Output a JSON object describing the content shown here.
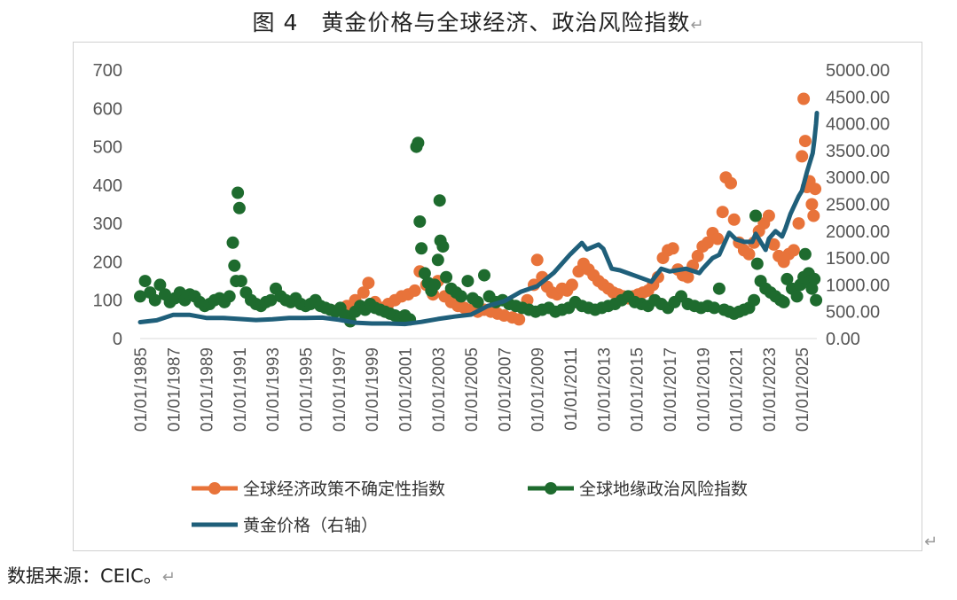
{
  "figure": {
    "title": "图 4　黄金价格与全球经济、政治风险指数",
    "title_mark": "↵",
    "source": "数据来源：CEIC。",
    "source_mark": "↵",
    "end_mark": "↵"
  },
  "colors": {
    "epu": "#E8733A",
    "gpr": "#1E6B2E",
    "gold": "#1F5F7A",
    "axis_text": "#555555",
    "frame": "#d0d0d0"
  },
  "chart_data": {
    "type": "scatter",
    "y_left": {
      "min": 0,
      "max": 700,
      "ticks": [
        "0",
        "100",
        "200",
        "300",
        "400",
        "500",
        "600",
        "700"
      ]
    },
    "y_right": {
      "min": 0,
      "max": 5000,
      "ticks": [
        "0.00",
        "500.00",
        "1000.00",
        "1500.00",
        "2000.00",
        "2500.00",
        "3000.00",
        "3500.00",
        "4000.00",
        "4500.00",
        "5000.00"
      ]
    },
    "x_range": [
      1985,
      2025.9
    ],
    "x_ticks": [
      "01/01/1985",
      "01/01/1987",
      "01/01/1989",
      "01/01/1991",
      "01/01/1993",
      "01/01/1995",
      "01/01/1997",
      "01/01/1999",
      "01/01/2001",
      "01/01/2003",
      "01/01/2005",
      "01/01/2007",
      "01/01/2009",
      "01/01/2011",
      "01/01/2013",
      "01/01/2015",
      "01/01/2017",
      "01/01/2019",
      "01/01/2021",
      "01/01/2023",
      "01/01/2025"
    ],
    "legend": [
      "全球经济政策不确定性指数",
      "全球地缘政治风险指数",
      "黄金价格（右轴）"
    ],
    "series": [
      {
        "name": "全球经济政策不确定性指数",
        "kind": "scatter",
        "axis": "left",
        "points": [
          [
            1997.0,
            75
          ],
          [
            1997.5,
            85
          ],
          [
            1998.0,
            100
          ],
          [
            1998.5,
            120
          ],
          [
            1998.8,
            145
          ],
          [
            1999.2,
            95
          ],
          [
            1999.6,
            80
          ],
          [
            2000.0,
            90
          ],
          [
            2000.4,
            100
          ],
          [
            2000.8,
            110
          ],
          [
            2001.2,
            115
          ],
          [
            2001.6,
            125
          ],
          [
            2001.9,
            175
          ],
          [
            2002.3,
            140
          ],
          [
            2002.7,
            115
          ],
          [
            2003.0,
            150
          ],
          [
            2003.4,
            110
          ],
          [
            2003.8,
            95
          ],
          [
            2004.2,
            85
          ],
          [
            2004.6,
            80
          ],
          [
            2005.0,
            75
          ],
          [
            2005.4,
            70
          ],
          [
            2005.8,
            75
          ],
          [
            2006.2,
            70
          ],
          [
            2006.6,
            65
          ],
          [
            2007.0,
            60
          ],
          [
            2007.5,
            55
          ],
          [
            2007.9,
            50
          ],
          [
            2008.4,
            100
          ],
          [
            2008.8,
            140
          ],
          [
            2009.0,
            205
          ],
          [
            2009.3,
            160
          ],
          [
            2009.6,
            135
          ],
          [
            2009.9,
            120
          ],
          [
            2010.2,
            115
          ],
          [
            2010.5,
            130
          ],
          [
            2010.8,
            125
          ],
          [
            2011.1,
            140
          ],
          [
            2011.5,
            175
          ],
          [
            2011.8,
            195
          ],
          [
            2012.1,
            180
          ],
          [
            2012.4,
            165
          ],
          [
            2012.7,
            150
          ],
          [
            2013.0,
            140
          ],
          [
            2013.3,
            130
          ],
          [
            2013.6,
            120
          ],
          [
            2013.9,
            115
          ],
          [
            2014.2,
            110
          ],
          [
            2014.5,
            105
          ],
          [
            2014.8,
            110
          ],
          [
            2015.1,
            115
          ],
          [
            2015.4,
            120
          ],
          [
            2015.7,
            125
          ],
          [
            2016.0,
            140
          ],
          [
            2016.3,
            160
          ],
          [
            2016.6,
            210
          ],
          [
            2016.9,
            230
          ],
          [
            2017.2,
            235
          ],
          [
            2017.5,
            180
          ],
          [
            2017.8,
            165
          ],
          [
            2018.1,
            160
          ],
          [
            2018.4,
            190
          ],
          [
            2018.7,
            215
          ],
          [
            2019.0,
            240
          ],
          [
            2019.3,
            250
          ],
          [
            2019.6,
            275
          ],
          [
            2019.9,
            260
          ],
          [
            2020.2,
            330
          ],
          [
            2020.4,
            420
          ],
          [
            2020.7,
            405
          ],
          [
            2020.9,
            310
          ],
          [
            2021.2,
            250
          ],
          [
            2021.5,
            230
          ],
          [
            2021.8,
            220
          ],
          [
            2022.1,
            250
          ],
          [
            2022.4,
            280
          ],
          [
            2022.7,
            300
          ],
          [
            2023.0,
            320
          ],
          [
            2023.3,
            245
          ],
          [
            2023.6,
            215
          ],
          [
            2023.9,
            200
          ],
          [
            2024.2,
            220
          ],
          [
            2024.5,
            230
          ],
          [
            2024.8,
            300
          ],
          [
            2025.0,
            475
          ],
          [
            2025.1,
            625
          ],
          [
            2025.2,
            515
          ],
          [
            2025.3,
            395
          ],
          [
            2025.45,
            410
          ],
          [
            2025.6,
            350
          ],
          [
            2025.7,
            320
          ],
          [
            2025.8,
            390
          ]
        ]
      },
      {
        "name": "全球地缘政治风险指数",
        "kind": "scatter",
        "axis": "left",
        "points": [
          [
            1985.0,
            110
          ],
          [
            1985.3,
            150
          ],
          [
            1985.6,
            120
          ],
          [
            1985.9,
            100
          ],
          [
            1986.2,
            140
          ],
          [
            1986.5,
            115
          ],
          [
            1986.8,
            95
          ],
          [
            1987.1,
            105
          ],
          [
            1987.4,
            120
          ],
          [
            1987.7,
            100
          ],
          [
            1988.0,
            115
          ],
          [
            1988.3,
            110
          ],
          [
            1988.6,
            95
          ],
          [
            1988.9,
            85
          ],
          [
            1989.2,
            90
          ],
          [
            1989.5,
            100
          ],
          [
            1989.8,
            105
          ],
          [
            1990.1,
            95
          ],
          [
            1990.4,
            110
          ],
          [
            1990.6,
            250
          ],
          [
            1990.7,
            190
          ],
          [
            1990.8,
            150
          ],
          [
            1990.9,
            380
          ],
          [
            1991.0,
            340
          ],
          [
            1991.1,
            150
          ],
          [
            1991.4,
            120
          ],
          [
            1991.7,
            100
          ],
          [
            1992.0,
            90
          ],
          [
            1992.3,
            85
          ],
          [
            1992.6,
            95
          ],
          [
            1992.9,
            100
          ],
          [
            1993.2,
            130
          ],
          [
            1993.5,
            110
          ],
          [
            1993.8,
            100
          ],
          [
            1994.1,
            95
          ],
          [
            1994.4,
            105
          ],
          [
            1994.7,
            90
          ],
          [
            1995.0,
            85
          ],
          [
            1995.3,
            90
          ],
          [
            1995.6,
            100
          ],
          [
            1995.9,
            85
          ],
          [
            1996.2,
            80
          ],
          [
            1996.5,
            75
          ],
          [
            1996.8,
            70
          ],
          [
            1997.1,
            80
          ],
          [
            1997.4,
            60
          ],
          [
            1997.7,
            45
          ],
          [
            1998.0,
            70
          ],
          [
            1998.3,
            85
          ],
          [
            1998.6,
            75
          ],
          [
            1998.9,
            90
          ],
          [
            1999.2,
            80
          ],
          [
            1999.5,
            75
          ],
          [
            1999.8,
            70
          ],
          [
            2000.1,
            65
          ],
          [
            2000.4,
            60
          ],
          [
            2000.7,
            55
          ],
          [
            2001.0,
            60
          ],
          [
            2001.3,
            50
          ],
          [
            2001.7,
            500
          ],
          [
            2001.8,
            510
          ],
          [
            2001.9,
            305
          ],
          [
            2002.0,
            235
          ],
          [
            2002.2,
            170
          ],
          [
            2002.4,
            145
          ],
          [
            2002.6,
            125
          ],
          [
            2002.8,
            140
          ],
          [
            2003.0,
            205
          ],
          [
            2003.1,
            360
          ],
          [
            2003.15,
            255
          ],
          [
            2003.3,
            240
          ],
          [
            2003.5,
            160
          ],
          [
            2003.8,
            130
          ],
          [
            2004.1,
            120
          ],
          [
            2004.4,
            110
          ],
          [
            2004.8,
            150
          ],
          [
            2005.1,
            105
          ],
          [
            2005.4,
            95
          ],
          [
            2005.8,
            165
          ],
          [
            2006.1,
            110
          ],
          [
            2006.5,
            95
          ],
          [
            2006.9,
            100
          ],
          [
            2007.3,
            90
          ],
          [
            2007.7,
            85
          ],
          [
            2008.1,
            80
          ],
          [
            2008.5,
            75
          ],
          [
            2008.9,
            70
          ],
          [
            2009.3,
            75
          ],
          [
            2009.7,
            80
          ],
          [
            2010.1,
            70
          ],
          [
            2010.5,
            75
          ],
          [
            2010.9,
            80
          ],
          [
            2011.3,
            95
          ],
          [
            2011.7,
            85
          ],
          [
            2012.1,
            80
          ],
          [
            2012.5,
            75
          ],
          [
            2012.9,
            80
          ],
          [
            2013.3,
            85
          ],
          [
            2013.7,
            90
          ],
          [
            2014.1,
            100
          ],
          [
            2014.5,
            110
          ],
          [
            2014.9,
            95
          ],
          [
            2015.3,
            90
          ],
          [
            2015.7,
            85
          ],
          [
            2016.1,
            100
          ],
          [
            2016.5,
            90
          ],
          [
            2016.9,
            80
          ],
          [
            2017.3,
            95
          ],
          [
            2017.7,
            110
          ],
          [
            2018.1,
            90
          ],
          [
            2018.5,
            85
          ],
          [
            2018.9,
            80
          ],
          [
            2019.3,
            85
          ],
          [
            2019.7,
            80
          ],
          [
            2020.0,
            130
          ],
          [
            2020.3,
            75
          ],
          [
            2020.6,
            70
          ],
          [
            2020.9,
            65
          ],
          [
            2021.2,
            70
          ],
          [
            2021.5,
            75
          ],
          [
            2021.8,
            80
          ],
          [
            2022.1,
            100
          ],
          [
            2022.2,
            320
          ],
          [
            2022.3,
            195
          ],
          [
            2022.5,
            150
          ],
          [
            2022.8,
            130
          ],
          [
            2023.1,
            120
          ],
          [
            2023.4,
            110
          ],
          [
            2023.7,
            100
          ],
          [
            2023.9,
            95
          ],
          [
            2024.1,
            155
          ],
          [
            2024.4,
            130
          ],
          [
            2024.7,
            110
          ],
          [
            2024.9,
            140
          ],
          [
            2025.1,
            160
          ],
          [
            2025.2,
            220
          ],
          [
            2025.4,
            170
          ],
          [
            2025.5,
            150
          ],
          [
            2025.6,
            130
          ],
          [
            2025.75,
            155
          ],
          [
            2025.85,
            100
          ]
        ]
      },
      {
        "name": "黄金价格（右轴）",
        "kind": "line",
        "axis": "right",
        "points": [
          [
            1985.0,
            305
          ],
          [
            1986.0,
            340
          ],
          [
            1987.0,
            440
          ],
          [
            1988.0,
            440
          ],
          [
            1989.0,
            385
          ],
          [
            1990.0,
            385
          ],
          [
            1991.0,
            365
          ],
          [
            1992.0,
            345
          ],
          [
            1993.0,
            360
          ],
          [
            1994.0,
            385
          ],
          [
            1995.0,
            385
          ],
          [
            1996.0,
            390
          ],
          [
            1997.0,
            350
          ],
          [
            1998.0,
            295
          ],
          [
            1999.0,
            280
          ],
          [
            2000.0,
            280
          ],
          [
            2001.0,
            270
          ],
          [
            2002.0,
            310
          ],
          [
            2003.0,
            365
          ],
          [
            2004.0,
            410
          ],
          [
            2005.0,
            445
          ],
          [
            2006.0,
            605
          ],
          [
            2007.0,
            695
          ],
          [
            2008.0,
            870
          ],
          [
            2009.0,
            975
          ],
          [
            2010.0,
            1225
          ],
          [
            2011.0,
            1570
          ],
          [
            2011.7,
            1780
          ],
          [
            2012.0,
            1660
          ],
          [
            2012.7,
            1750
          ],
          [
            2013.0,
            1670
          ],
          [
            2013.5,
            1300
          ],
          [
            2014.0,
            1270
          ],
          [
            2015.0,
            1160
          ],
          [
            2015.9,
            1060
          ],
          [
            2016.5,
            1300
          ],
          [
            2017.0,
            1250
          ],
          [
            2018.0,
            1300
          ],
          [
            2018.8,
            1220
          ],
          [
            2019.0,
            1300
          ],
          [
            2019.6,
            1500
          ],
          [
            2020.0,
            1560
          ],
          [
            2020.6,
            1970
          ],
          [
            2021.0,
            1850
          ],
          [
            2021.5,
            1800
          ],
          [
            2022.0,
            1800
          ],
          [
            2022.2,
            1950
          ],
          [
            2022.8,
            1650
          ],
          [
            2023.0,
            1860
          ],
          [
            2023.4,
            2000
          ],
          [
            2023.8,
            1900
          ],
          [
            2024.0,
            2050
          ],
          [
            2024.3,
            2320
          ],
          [
            2024.8,
            2650
          ],
          [
            2025.0,
            2750
          ],
          [
            2025.3,
            3100
          ],
          [
            2025.5,
            3300
          ],
          [
            2025.65,
            3450
          ],
          [
            2025.75,
            3700
          ],
          [
            2025.85,
            4000
          ],
          [
            2025.9,
            4200
          ]
        ]
      }
    ]
  }
}
